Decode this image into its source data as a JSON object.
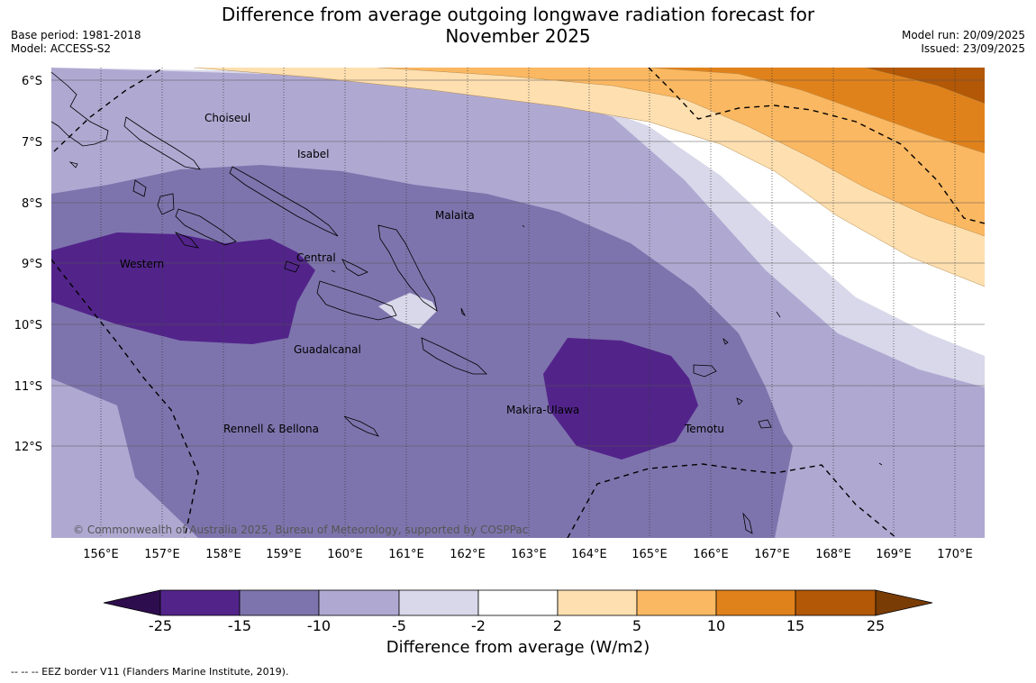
{
  "title_line1": "Difference from average outgoing longwave radiation forecast for",
  "title_line2": "November 2025",
  "meta_left": {
    "base_period": "Base period: 1981-2018",
    "model": "Model: ACCESS-S2"
  },
  "meta_right": {
    "model_run": "Model run: 20/09/2025",
    "issued": "Issued: 23/09/2025"
  },
  "latitude_labels": [
    "6°S",
    "7°S",
    "8°S",
    "9°S",
    "10°S",
    "11°S",
    "12°S"
  ],
  "longitude_labels": [
    "156°E",
    "157°E",
    "158°E",
    "159°E",
    "160°E",
    "161°E",
    "162°E",
    "163°E",
    "164°E",
    "165°E",
    "166°E",
    "167°E",
    "168°E",
    "169°E",
    "170°E"
  ],
  "provinces": [
    "Choiseul",
    "Isabel",
    "Malaita",
    "Western",
    "Central",
    "Guadalcanal",
    "Rennell & Bellona",
    "Makira-Ulawa",
    "Temotu"
  ],
  "copyright": "© Commonwealth of Australia 2025, Bureau of Meteorology, supported by COSPPac",
  "colorbar": {
    "ticks": [
      "-25",
      "-15",
      "-10",
      "-5",
      "-2",
      "2",
      "5",
      "10",
      "15",
      "25"
    ],
    "colors": [
      "#2e0d4f",
      "#52248a",
      "#7e74ad",
      "#afa9d2",
      "#d8d8ea",
      "#ffffff",
      "#fedfb0",
      "#fbb862",
      "#e0821b",
      "#b25806",
      "#7a3c05"
    ],
    "title": "Difference from average (W/m2)"
  },
  "footer": "--  --  -- EEZ border V11 (Flanders Marine Institute, 2019)."
}
